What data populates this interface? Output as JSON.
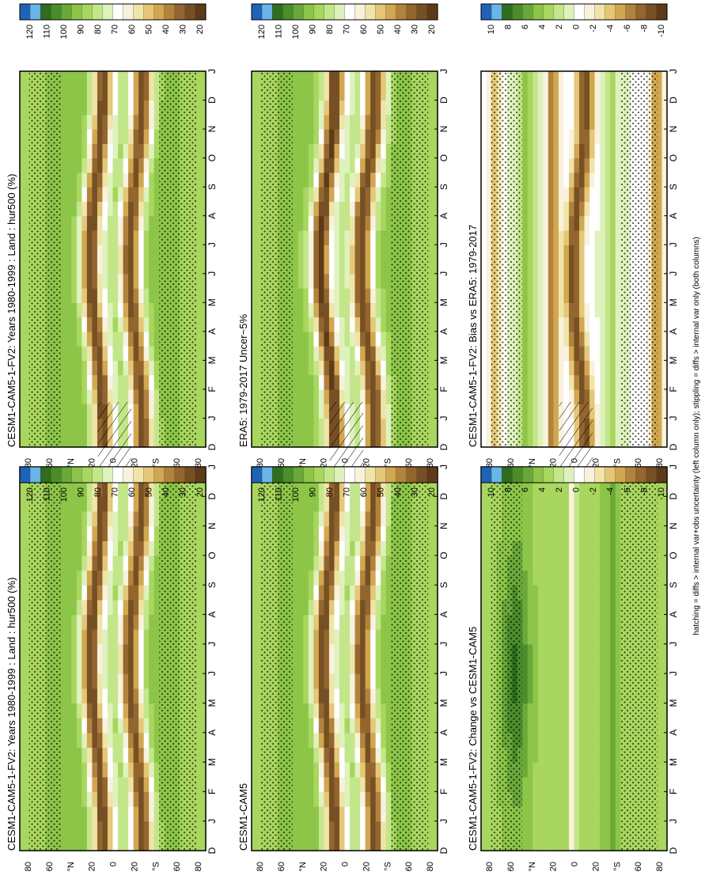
{
  "figure": {
    "footnote": "hatching = diffs > internal var+obs uncertainty (left column only); stippling = diffs > internal var only (both columns)"
  },
  "colors": {
    "abs_scale": [
      "#1f63b7",
      "#69b5ea",
      "#2f6d1f",
      "#4b8d2a",
      "#6aa83a",
      "#8cc548",
      "#a8d65e",
      "#c3e68a",
      "#def2bd",
      "#ffffff",
      "#f8f2dd",
      "#f1e4a8",
      "#e5c778",
      "#d2a750",
      "#b3823c",
      "#93662f",
      "#765024",
      "#5d3b18"
    ],
    "diff_scale": [
      "#1f63b7",
      "#69b5ea",
      "#2f6d1f",
      "#4b8d2a",
      "#6aa83a",
      "#8cc548",
      "#a8d65e",
      "#c3e68a",
      "#def2bd",
      "#ffffff",
      "#f8f2dd",
      "#f1e4a8",
      "#e5c778",
      "#d2a750",
      "#b3823c",
      "#93662f",
      "#765024",
      "#5d3b18"
    ]
  },
  "chart_data": [
    {
      "type": "heatmap",
      "panel": "top-left",
      "title": "CESM1-CAM5-1-FV2: Years 1980-1999 : Land : hur500 (%)",
      "x_ticks": [
        "D",
        "J",
        "F",
        "M",
        "A",
        "M",
        "J",
        "J",
        "A",
        "S",
        "O",
        "N",
        "D",
        "J"
      ],
      "y_ticks": [
        "80",
        "60",
        "°N",
        "20",
        "0",
        "20",
        "°S",
        "60",
        "80"
      ],
      "colorbar_ticks": [
        "120",
        "110",
        "100",
        "90",
        "80",
        "70",
        "60",
        "50",
        "40",
        "30",
        "20"
      ],
      "vlim": [
        15,
        125
      ],
      "pattern": {
        "nh_center": 15,
        "sh_center": -22,
        "dry_min": 22,
        "moist": 92,
        "migration_deg": 6
      },
      "hatching": true,
      "stippling": true
    },
    {
      "type": "heatmap",
      "panel": "top-right",
      "title": "CESM1-CAM5-1-FV2: Years 1980-1999 : Land : hur500 (%)",
      "x_ticks": [
        "D",
        "J",
        "F",
        "M",
        "A",
        "M",
        "J",
        "J",
        "A",
        "S",
        "O",
        "N",
        "D",
        "J"
      ],
      "y_ticks": [
        "80",
        "60",
        "°N",
        "20",
        "0",
        "20",
        "°S",
        "60",
        "80"
      ],
      "colorbar_ticks": [
        "120",
        "110",
        "100",
        "90",
        "80",
        "70",
        "60",
        "50",
        "40",
        "30",
        "20"
      ],
      "vlim": [
        15,
        125
      ],
      "pattern": {
        "nh_center": 15,
        "sh_center": -22,
        "dry_min": 22,
        "moist": 92,
        "migration_deg": 6
      },
      "hatching": false,
      "stippling": true
    },
    {
      "type": "heatmap",
      "panel": "middle-left",
      "title": "ERA5: 1979-2017 Uncer~5%",
      "x_ticks": [
        "D",
        "J",
        "F",
        "M",
        "A",
        "M",
        "J",
        "J",
        "A",
        "S",
        "O",
        "N",
        "D",
        "J"
      ],
      "y_ticks": [
        "80",
        "60",
        "°N",
        "20",
        "0",
        "20",
        "°S",
        "60",
        "80"
      ],
      "colorbar_ticks": [
        "120",
        "110",
        "100",
        "90",
        "80",
        "70",
        "60",
        "50",
        "40",
        "30",
        "20"
      ],
      "vlim": [
        15,
        125
      ],
      "pattern": {
        "nh_center": 16,
        "sh_center": -22,
        "dry_min": 20,
        "moist": 90,
        "migration_deg": 7
      },
      "hatching": true,
      "stippling": true
    },
    {
      "type": "heatmap",
      "panel": "middle-right",
      "title": "CESM1-CAM5",
      "x_ticks": [
        "D",
        "J",
        "F",
        "M",
        "A",
        "M",
        "J",
        "J",
        "A",
        "S",
        "O",
        "N",
        "D",
        "J"
      ],
      "y_ticks": [
        "80",
        "60",
        "°N",
        "20",
        "0",
        "20",
        "°S",
        "60",
        "80"
      ],
      "colorbar_ticks": [
        "120",
        "110",
        "100",
        "90",
        "80",
        "70",
        "60",
        "50",
        "40",
        "30",
        "20"
      ],
      "vlim": [
        15,
        125
      ],
      "pattern": {
        "nh_center": 15,
        "sh_center": -22,
        "dry_min": 22,
        "moist": 92,
        "migration_deg": 6
      },
      "hatching": false,
      "stippling": true
    },
    {
      "type": "heatmap",
      "panel": "bottom-left",
      "title": "CESM1-CAM5-1-FV2: Bias vs ERA5: 1979-2017",
      "x_ticks": [
        "D",
        "J",
        "F",
        "M",
        "A",
        "M",
        "J",
        "J",
        "A",
        "S",
        "O",
        "N",
        "D",
        "J"
      ],
      "y_ticks": [
        "80",
        "60",
        "°N",
        "20",
        "0",
        "20",
        "°S",
        "60",
        "80"
      ],
      "colorbar_ticks": [
        "10",
        "8",
        "6",
        "4",
        "2",
        "0",
        "-2",
        "-4",
        "-6",
        "-8",
        "-10"
      ],
      "vlim": [
        -11,
        11
      ],
      "pattern": {
        "kind": "bias"
      },
      "hatching": true,
      "stippling": true
    },
    {
      "type": "heatmap",
      "panel": "bottom-right",
      "title": "CESM1-CAM5-1-FV2: Change vs CESM1-CAM5",
      "x_ticks": [
        "D",
        "J",
        "F",
        "M",
        "A",
        "M",
        "J",
        "J",
        "A",
        "S",
        "O",
        "N",
        "D",
        "J"
      ],
      "y_ticks": [
        "80",
        "60",
        "°N",
        "20",
        "0",
        "20",
        "°S",
        "60",
        "80"
      ],
      "colorbar_ticks": [
        "10",
        "8",
        "6",
        "4",
        "2",
        "0",
        "-2",
        "-4",
        "-6",
        "-8",
        "-10"
      ],
      "vlim": [
        -11,
        11
      ],
      "pattern": {
        "kind": "change"
      },
      "hatching": false,
      "stippling": true
    }
  ]
}
